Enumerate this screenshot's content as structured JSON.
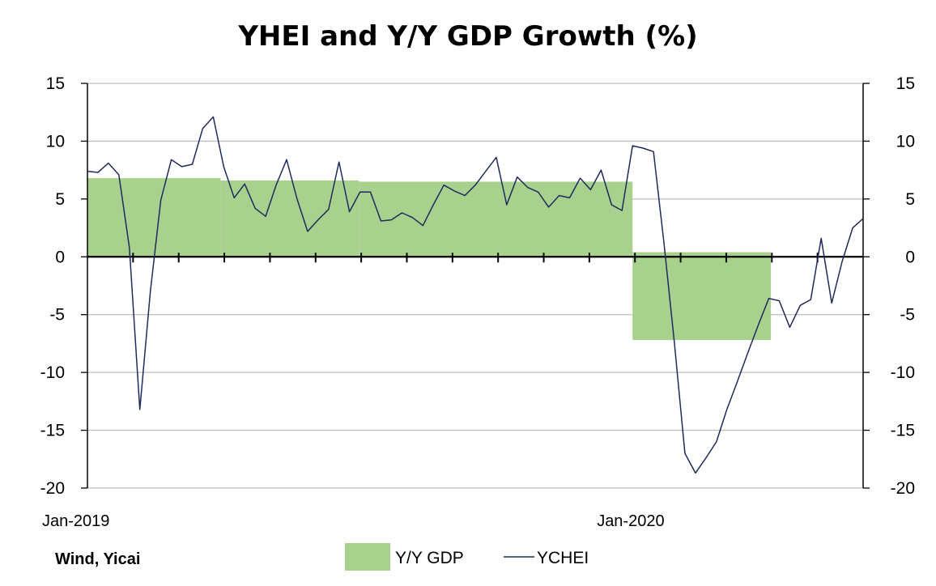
{
  "chart_data": {
    "type": "line",
    "title": "YHEI and Y/Y GDP Growth (%)",
    "source": "Wind, Yicai",
    "ylim": [
      -20,
      15
    ],
    "yticks": [
      "15",
      "10",
      "5",
      "0",
      "-5",
      "-10",
      "-15",
      "-20"
    ],
    "yticks_values": [
      15,
      10,
      5,
      0,
      -5,
      -10,
      -15,
      -20
    ],
    "x_labels": [
      {
        "label": "Jan-2019",
        "week": 0
      },
      {
        "label": "Jan-2020",
        "week": 52
      }
    ],
    "x_range": [
      0,
      74
    ],
    "grid": true,
    "legend": {
      "position": "bottom-center",
      "items": [
        "Y/Y GDP",
        "YCHEI"
      ]
    },
    "colors": {
      "gdp": "#a9d18e",
      "ychei": "#1f2a5c",
      "grid": "#bfbfbf",
      "axis": "#000000"
    },
    "series": [
      {
        "name": "Y/Y GDP",
        "kind": "area",
        "segments": [
          {
            "start": 0,
            "end": 12.7,
            "value": 6.8
          },
          {
            "start": 12.7,
            "end": 25.9,
            "value": 6.6
          },
          {
            "start": 25.9,
            "end": 52,
            "value": 6.5
          },
          {
            "start": 52,
            "end": 65.2,
            "value": 0.4
          },
          {
            "start": 52,
            "end": 65.2,
            "value": -7.2
          }
        ]
      },
      {
        "name": "YCHEI",
        "kind": "line",
        "x": [
          0,
          1,
          2,
          3,
          4,
          5,
          6,
          7,
          8,
          9,
          10,
          11,
          12,
          13,
          14,
          15,
          16,
          17,
          18,
          19,
          20,
          21,
          22,
          23,
          24,
          25,
          26,
          27,
          28,
          29,
          30,
          31,
          32,
          33,
          34,
          35,
          36,
          37,
          38,
          39,
          40,
          41,
          42,
          43,
          44,
          45,
          46,
          47,
          48,
          49,
          50,
          51,
          52,
          53,
          54,
          55,
          56,
          57,
          58,
          59,
          60,
          61,
          62,
          63,
          64,
          65,
          66,
          67,
          68,
          69,
          70,
          71,
          72,
          73,
          74
        ],
        "values": [
          7.4,
          7.3,
          8.1,
          7.1,
          0.8,
          -13.2,
          -3,
          4.9,
          8.4,
          7.8,
          8,
          11.1,
          12.1,
          7.8,
          5.1,
          6.3,
          4.2,
          3.5,
          6.2,
          8.4,
          5,
          2.2,
          3.2,
          4.1,
          8.2,
          3.9,
          5.6,
          5.6,
          3.1,
          3.2,
          3.8,
          3.4,
          2.7,
          4.5,
          6.2,
          5.7,
          5.3,
          6.2,
          7.4,
          8.6,
          4.5,
          6.9,
          6,
          5.6,
          4.3,
          5.3,
          5.1,
          6.8,
          5.8,
          7.5,
          4.5,
          4,
          9.6,
          9.4,
          9.1,
          1.2,
          -7.5,
          -17,
          -18.7,
          -17.4,
          -16,
          -13.2,
          -10.8,
          -8.3,
          -5.9,
          -3.6,
          -3.8,
          -6.1,
          -4.2,
          -3.7,
          1.6,
          -4,
          -0.4,
          2.5,
          3.3
        ]
      }
    ]
  }
}
